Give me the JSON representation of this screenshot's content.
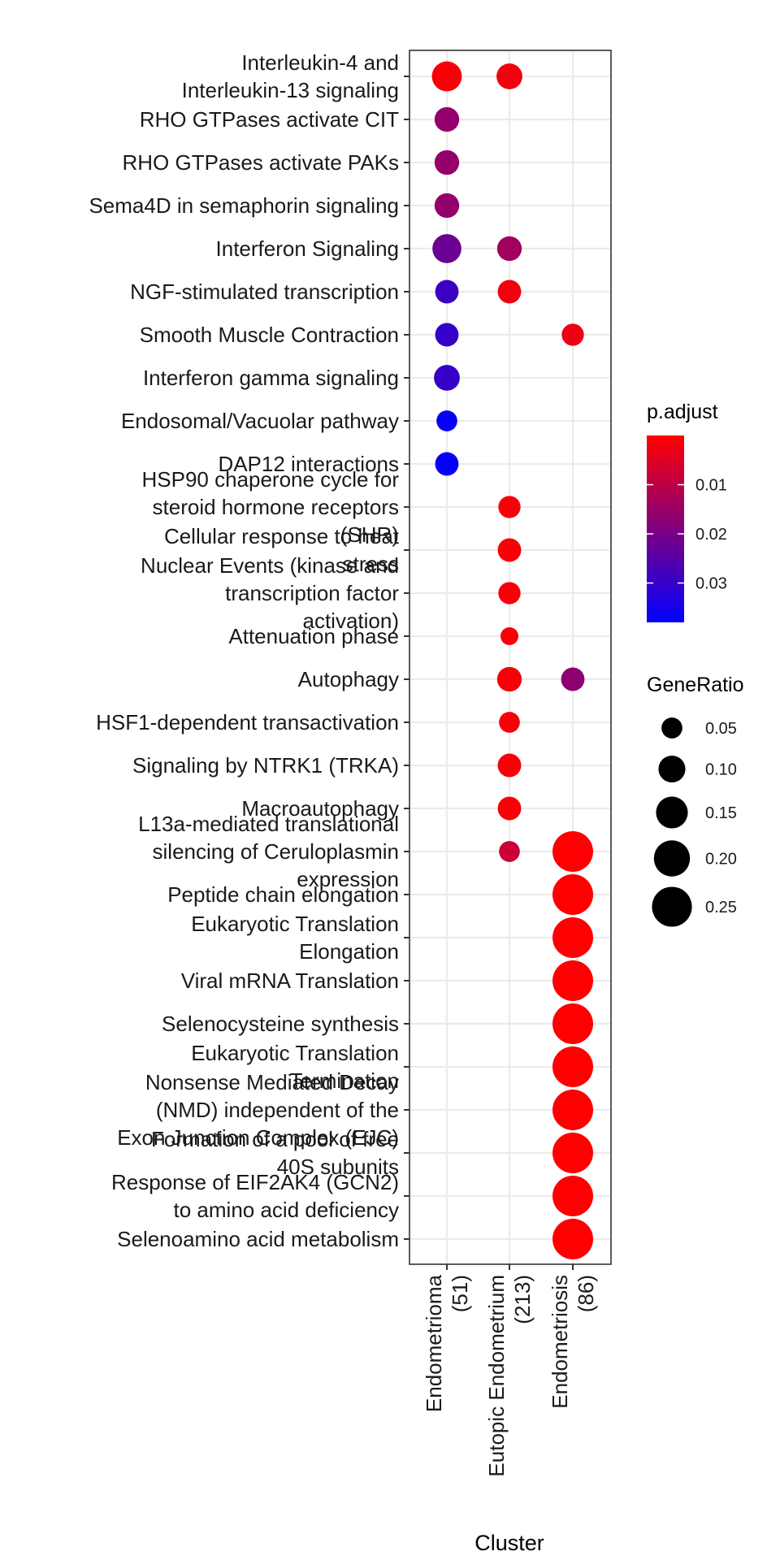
{
  "chart_data": {
    "type": "scatter",
    "xlabel": "Cluster",
    "ylabel": "",
    "x_categories": [
      "Endometrioma\n(51)",
      "Eutopic Endometrium\n(213)",
      "Endometriosis\n(86)"
    ],
    "y_categories": [
      "Interleukin-4 and\nInterleukin-13 signaling",
      "RHO GTPases activate CIT",
      "RHO GTPases activate PAKs",
      "Sema4D in semaphorin signaling",
      "Interferon Signaling",
      "NGF-stimulated transcription",
      "Smooth Muscle Contraction",
      "Interferon gamma signaling",
      "Endosomal/Vacuolar pathway",
      "DAP12 interactions",
      "HSP90 chaperone cycle for\nsteroid hormone receptors\n(SHR)",
      "Cellular response to heat\nstress",
      "Nuclear Events (kinase and\ntranscription factor\nactivation)",
      "Attenuation phase",
      "Autophagy",
      "HSF1-dependent transactivation",
      "Signaling by NTRK1 (TRKA)",
      "Macroautophagy",
      "L13a-mediated translational\nsilencing of Ceruloplasmin\nexpression",
      "Peptide chain elongation",
      "Eukaryotic Translation\nElongation",
      "Viral mRNA Translation",
      "Selenocysteine synthesis",
      "Eukaryotic Translation\nTermination",
      "Nonsense Mediated Decay\n(NMD) independent of the\nExon Junction Complex (EJC)",
      "Formation of a pool of free\n40S subunits",
      "Response of EIF2AK4 (GCN2)\nto amino acid deficiency",
      "Selenoamino acid metabolism"
    ],
    "points": [
      {
        "x": 0,
        "y": 0,
        "gene_ratio": 0.13,
        "p_adjust": 0.001
      },
      {
        "x": 1,
        "y": 0,
        "gene_ratio": 0.09,
        "p_adjust": 0.002
      },
      {
        "x": 0,
        "y": 1,
        "gene_ratio": 0.08,
        "p_adjust": 0.016
      },
      {
        "x": 0,
        "y": 2,
        "gene_ratio": 0.08,
        "p_adjust": 0.016
      },
      {
        "x": 0,
        "y": 3,
        "gene_ratio": 0.08,
        "p_adjust": 0.016
      },
      {
        "x": 0,
        "y": 4,
        "gene_ratio": 0.12,
        "p_adjust": 0.022
      },
      {
        "x": 1,
        "y": 4,
        "gene_ratio": 0.08,
        "p_adjust": 0.014
      },
      {
        "x": 0,
        "y": 5,
        "gene_ratio": 0.07,
        "p_adjust": 0.029
      },
      {
        "x": 1,
        "y": 5,
        "gene_ratio": 0.07,
        "p_adjust": 0.002
      },
      {
        "x": 0,
        "y": 6,
        "gene_ratio": 0.07,
        "p_adjust": 0.03
      },
      {
        "x": 2,
        "y": 6,
        "gene_ratio": 0.06,
        "p_adjust": 0.003
      },
      {
        "x": 0,
        "y": 7,
        "gene_ratio": 0.09,
        "p_adjust": 0.03
      },
      {
        "x": 0,
        "y": 8,
        "gene_ratio": 0.05,
        "p_adjust": 0.037
      },
      {
        "x": 0,
        "y": 9,
        "gene_ratio": 0.07,
        "p_adjust": 0.037
      },
      {
        "x": 1,
        "y": 10,
        "gene_ratio": 0.06,
        "p_adjust": 0.001
      },
      {
        "x": 1,
        "y": 11,
        "gene_ratio": 0.07,
        "p_adjust": 0.001
      },
      {
        "x": 1,
        "y": 12,
        "gene_ratio": 0.06,
        "p_adjust": 0.001
      },
      {
        "x": 1,
        "y": 13,
        "gene_ratio": 0.03,
        "p_adjust": 0.001
      },
      {
        "x": 1,
        "y": 14,
        "gene_ratio": 0.08,
        "p_adjust": 0.001
      },
      {
        "x": 2,
        "y": 14,
        "gene_ratio": 0.07,
        "p_adjust": 0.017
      },
      {
        "x": 1,
        "y": 15,
        "gene_ratio": 0.05,
        "p_adjust": 0.001
      },
      {
        "x": 1,
        "y": 16,
        "gene_ratio": 0.07,
        "p_adjust": 0.001
      },
      {
        "x": 1,
        "y": 17,
        "gene_ratio": 0.07,
        "p_adjust": 0.001
      },
      {
        "x": 1,
        "y": 18,
        "gene_ratio": 0.05,
        "p_adjust": 0.008
      },
      {
        "x": 2,
        "y": 18,
        "gene_ratio": 0.26,
        "p_adjust": 0.0001
      },
      {
        "x": 2,
        "y": 19,
        "gene_ratio": 0.26,
        "p_adjust": 0.0001
      },
      {
        "x": 2,
        "y": 20,
        "gene_ratio": 0.26,
        "p_adjust": 0.0001
      },
      {
        "x": 2,
        "y": 21,
        "gene_ratio": 0.26,
        "p_adjust": 0.0001
      },
      {
        "x": 2,
        "y": 22,
        "gene_ratio": 0.26,
        "p_adjust": 0.0001
      },
      {
        "x": 2,
        "y": 23,
        "gene_ratio": 0.26,
        "p_adjust": 0.0001
      },
      {
        "x": 2,
        "y": 24,
        "gene_ratio": 0.26,
        "p_adjust": 0.0001
      },
      {
        "x": 2,
        "y": 25,
        "gene_ratio": 0.26,
        "p_adjust": 0.0001
      },
      {
        "x": 2,
        "y": 26,
        "gene_ratio": 0.26,
        "p_adjust": 0.0001
      },
      {
        "x": 2,
        "y": 27,
        "gene_ratio": 0.26,
        "p_adjust": 0.0001
      }
    ],
    "color_legend": {
      "title": "p.adjust",
      "ticks": [
        "0.01",
        "0.02",
        "0.03"
      ],
      "tick_values": [
        0.01,
        0.02,
        0.03
      ],
      "range": [
        0.0,
        0.038
      ],
      "low_value_color": "#ff0000",
      "high_value_color": "#0000ff"
    },
    "size_legend": {
      "title": "GeneRatio",
      "labels": [
        "0.05",
        "0.10",
        "0.15",
        "0.20",
        "0.25"
      ],
      "values": [
        0.05,
        0.1,
        0.15,
        0.2,
        0.25
      ]
    },
    "grid": true,
    "legend_position": "right"
  }
}
